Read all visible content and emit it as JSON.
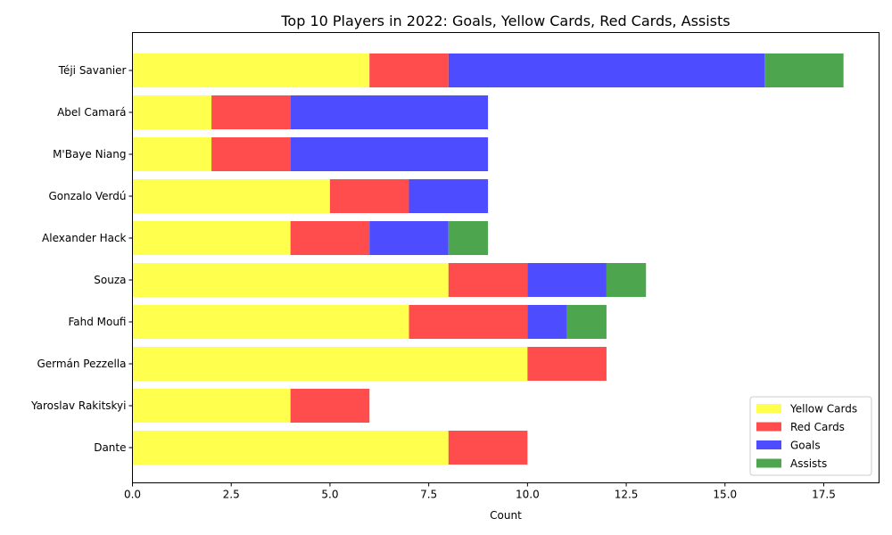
{
  "chart_data": {
    "type": "bar",
    "orientation": "horizontal",
    "stacked": true,
    "title": "Top 10 Players in 2022: Goals, Yellow Cards, Red Cards, Assists",
    "xlabel": "Count",
    "ylabel": "",
    "xlim": [
      0,
      18.9
    ],
    "xticks": [
      0,
      2.5,
      5,
      7.5,
      10,
      12.5,
      15,
      17.5
    ],
    "xtick_labels": [
      "0.0",
      "2.5",
      "5.0",
      "7.5",
      "10.0",
      "12.5",
      "15.0",
      "17.5"
    ],
    "grid": false,
    "legend_position": "bottom-right",
    "categories": [
      "Téji Savanier",
      "Abel Camará",
      "M'Baye Niang",
      "Gonzalo Verdú",
      "Alexander Hack",
      "Souza",
      "Fahd Moufi",
      "Germán Pezzella",
      "Yaroslav Rakitskyi",
      "Dante"
    ],
    "series": [
      {
        "name": "Yellow Cards",
        "color": "#ffff4d",
        "values": [
          6,
          2,
          2,
          5,
          4,
          8,
          7,
          10,
          4,
          8
        ]
      },
      {
        "name": "Red Cards",
        "color": "#ff4d4d",
        "values": [
          2,
          2,
          2,
          2,
          2,
          2,
          3,
          2,
          2,
          2
        ]
      },
      {
        "name": "Goals",
        "color": "#4d4dff",
        "values": [
          8,
          5,
          5,
          2,
          2,
          2,
          1,
          0,
          0,
          0
        ]
      },
      {
        "name": "Assists",
        "color": "#4da64d",
        "values": [
          2,
          0,
          0,
          0,
          1,
          1,
          1,
          0,
          0,
          0
        ]
      }
    ]
  }
}
